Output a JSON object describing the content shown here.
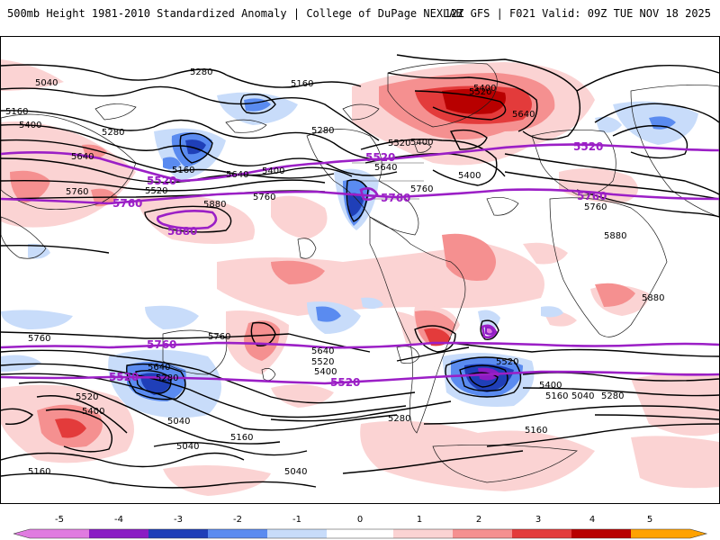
{
  "header": {
    "title_left": "500mb Height 1981-2010 Standardized Anomaly | College of DuPage NEXLAB",
    "title_right": "12Z GFS | F021 Valid: 09Z TUE NOV 18 2025"
  },
  "colors": {
    "neg5": "#e07be0",
    "neg4": "#8a1cc4",
    "neg3": "#1f3fb8",
    "neg2": "#5a8bf0",
    "neg1": "#c8dcfa",
    "pos1": "#fbd3d3",
    "pos2": "#f59090",
    "pos3": "#e33b3b",
    "pos4": "#b80000",
    "pos5": "#ffa200",
    "highlight_contour": "#9b1fc6",
    "contour": "#000000"
  },
  "colorbar": {
    "ticks": [
      "-5",
      "-4",
      "-3",
      "-2",
      "-1",
      "0",
      "1",
      "2",
      "3",
      "4",
      "5"
    ]
  },
  "contour_labels": {
    "l5040a": "5040",
    "l5280a": "5280",
    "l5160a": "5160",
    "l5160b": "5160",
    "l5400a": "5400",
    "l5280b": "5280",
    "l5640a": "5640",
    "l5520a": "5520",
    "l5160c": "5160",
    "l5520b": "5520",
    "l5520c": "5520",
    "l5640b": "5640",
    "l5400b": "5400",
    "l5280c": "5280",
    "l5760a": "5760",
    "l5760b": "5760",
    "l5880a": "5880",
    "l5760c": "5760",
    "l5880b": "5880",
    "l5520d": "5520",
    "l5640c": "5640",
    "l5400c": "5400",
    "l5520e": "5520",
    "l5520f": "5520",
    "l5400d": "5400",
    "l5640d": "5640",
    "l5400e": "5400",
    "l5760d": "5760",
    "l5760e": "5760",
    "l5880c": "5880",
    "l5880d": "5880",
    "l5760f": "5760",
    "l5760g": "5760",
    "l5760h": "5760",
    "l5760i": "5760",
    "l5760j": "5760",
    "l5280d": "5280",
    "l5640e": "5640",
    "l5520g": "5520",
    "l5400f": "5400",
    "l5520h": "5520",
    "l5520i": "5520",
    "l5520j": "5520",
    "l5640f": "5640",
    "l5400g": "5400",
    "l5160d": "5160",
    "l5040b": "5040",
    "l5280e": "5280",
    "l5520k": "5520",
    "l5400h": "5400",
    "l5040c": "5040",
    "l5160e": "5160",
    "l5040d": "5040",
    "l5280f": "5280",
    "l5160f": "5160",
    "l5160g": "5160",
    "l5040e": "5040"
  }
}
